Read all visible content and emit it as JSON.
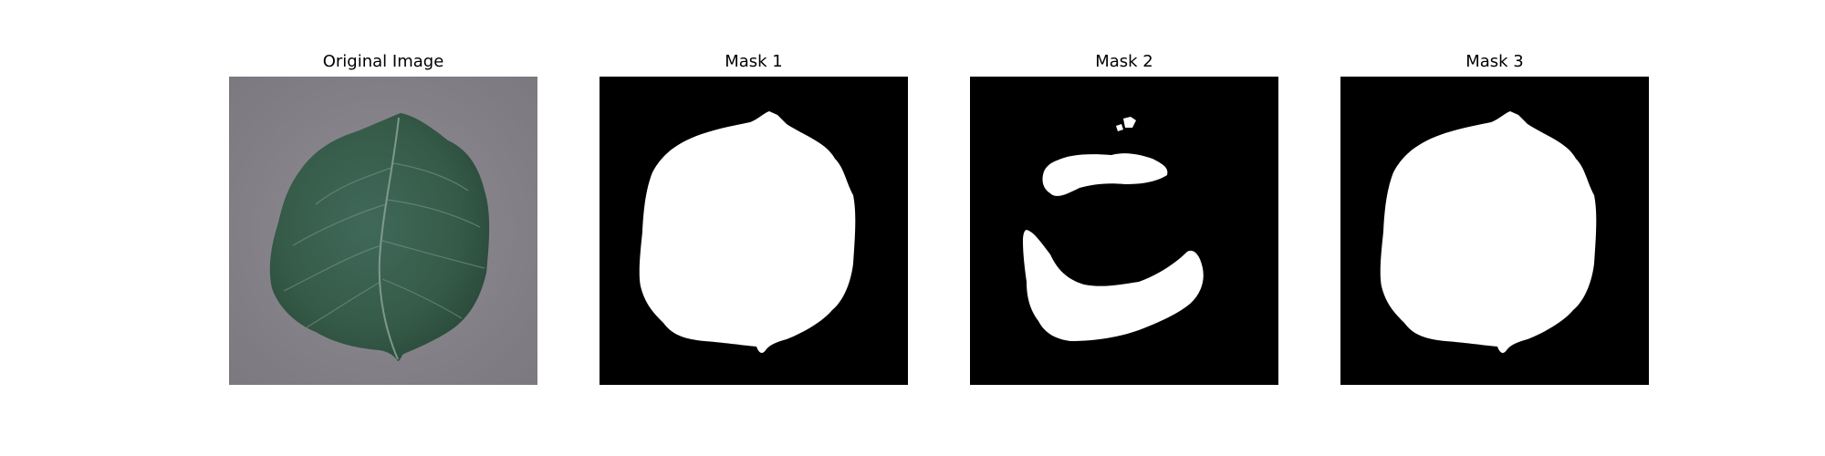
{
  "panels": [
    {
      "title": "Original Image"
    },
    {
      "title": "Mask 1"
    },
    {
      "title": "Mask 2"
    },
    {
      "title": "Mask 3"
    }
  ],
  "colors": {
    "background": "#ffffff",
    "mask_background": "#000000",
    "mask_foreground": "#ffffff",
    "surface_gray": "#86848a",
    "leaf_green": "#365a48"
  }
}
